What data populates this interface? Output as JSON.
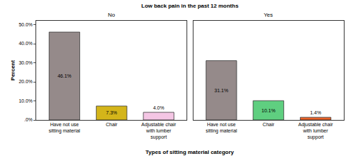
{
  "chart_data": {
    "type": "bar",
    "title": "Low back pain in the past 12 months",
    "x_label": "Types of sitting material category",
    "y_label": "Percent",
    "ylim": [
      0,
      52
    ],
    "yticks": [
      {
        "value": 0,
        "label": ".0%"
      },
      {
        "value": 10,
        "label": "10.0%"
      },
      {
        "value": 20,
        "label": "20.0%"
      },
      {
        "value": 30,
        "label": "30.0%"
      },
      {
        "value": 40,
        "label": "40.0%"
      },
      {
        "value": 50,
        "label": "50.0%"
      }
    ],
    "grid": false,
    "data_labels": true,
    "panels": [
      {
        "title": "No",
        "categories": [
          "Have not use sitting material",
          "Chair",
          "Adjustable chair with lumber support"
        ],
        "values": [
          46.1,
          7.3,
          4.0
        ],
        "value_labels": [
          "46.1%",
          "7.3%",
          "4.0%"
        ],
        "colors": [
          "#958a8a",
          "#d4b51a",
          "#f4c6e4"
        ]
      },
      {
        "title": "Yes",
        "categories": [
          "Have not use sitting material",
          "Chair",
          "Adjustable chair with lumber support"
        ],
        "values": [
          31.1,
          10.1,
          1.4
        ],
        "value_labels": [
          "31.1%",
          "10.1%",
          "1.4%"
        ],
        "colors": [
          "#958a8a",
          "#5fcf80",
          "#e9622a"
        ]
      }
    ]
  }
}
